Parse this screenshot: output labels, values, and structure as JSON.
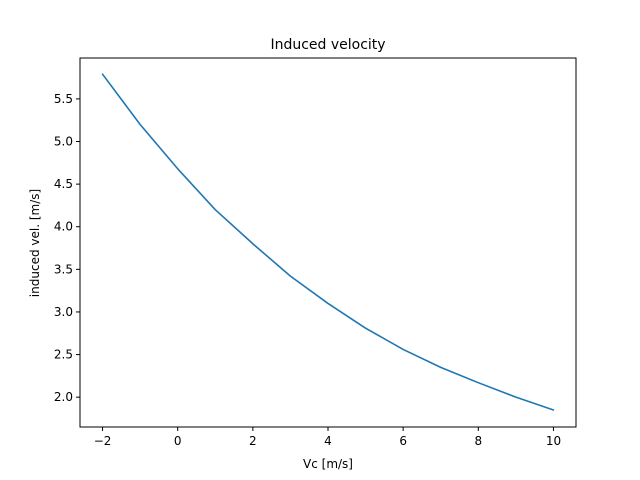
{
  "chart_data": {
    "type": "line",
    "title": "Induced velocity",
    "xlabel": "Vc [m/s]",
    "ylabel": "induced vel. [m/s]",
    "xlim": [
      -2.6,
      10.6
    ],
    "ylim": [
      1.65,
      5.98
    ],
    "grid": false,
    "x_ticks": [
      -2,
      0,
      2,
      4,
      6,
      8,
      10
    ],
    "x_tick_labels": [
      "−2",
      "0",
      "2",
      "4",
      "6",
      "8",
      "10"
    ],
    "y_ticks": [
      2.0,
      2.5,
      3.0,
      3.5,
      4.0,
      4.5,
      5.0,
      5.5
    ],
    "y_tick_labels": [
      "2.0",
      "2.5",
      "3.0",
      "3.5",
      "4.0",
      "4.5",
      "5.0",
      "5.5"
    ],
    "series": [
      {
        "name": "induced velocity",
        "color": "#1f77b4",
        "x": [
          -2,
          -1,
          0,
          1,
          2,
          3,
          4,
          5,
          6,
          7,
          8,
          9,
          10
        ],
        "y": [
          5.79,
          5.2,
          4.68,
          4.2,
          3.8,
          3.42,
          3.1,
          2.81,
          2.56,
          2.35,
          2.17,
          2.0,
          1.85
        ]
      }
    ]
  }
}
